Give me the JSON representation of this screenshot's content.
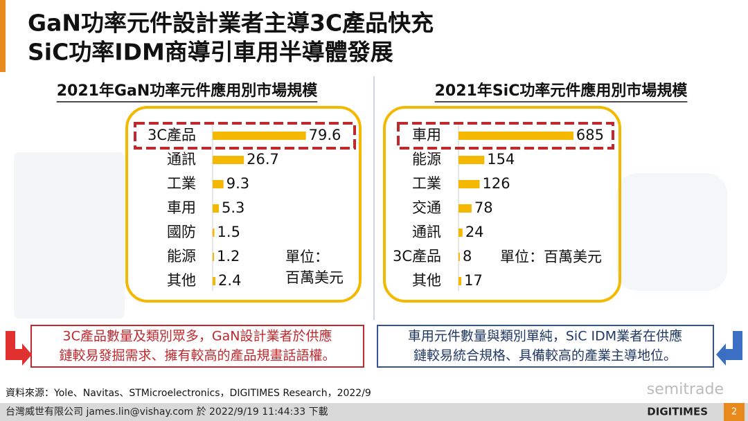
{
  "slide": {
    "title_lines": [
      "GaN功率元件設計業者主導3C產品快充",
      "SiC功率IDM商導引車用半導體發展"
    ],
    "callouts": [
      {
        "lines": [
          "3C產品數量及類別眾多，GaN設計業者於供應",
          "鏈較易發掘需求、擁有較高的產品規畫話語權。"
        ]
      },
      {
        "lines": [
          "車用元件數量與類別單純，SiC IDM業者在供應",
          "鏈較易統合規格、具備較高的產業主導地位。"
        ]
      }
    ],
    "source": "資料來源：Yole、Navitas、STMicroelectronics，DIGITIMES Research，2022/9",
    "footer": "台灣威世有限公司 james.lin@vishay.com 於 2022/9/19 11:44:33 下載",
    "watermark": "semitrade",
    "logo": "DIGITIMES",
    "page_number": "2"
  },
  "chart_data": [
    {
      "type": "hbar",
      "title": "2021年GaN功率元件應用別市場規模",
      "categories": [
        "3C產品",
        "通訊",
        "工業",
        "車用",
        "國防",
        "能源",
        "其他"
      ],
      "values": [
        79.6,
        26.7,
        9.3,
        5.3,
        1.5,
        1.2,
        2.4
      ],
      "color": "#f5b800",
      "xlim": [
        0,
        120
      ],
      "unit": [
        "單位：",
        "百萬美元"
      ]
    },
    {
      "type": "hbar",
      "title": "2021年SiC功率元件應用別市場規模",
      "categories": [
        "車用",
        "能源",
        "工業",
        "交通",
        "通訊",
        "3C產品",
        "其他"
      ],
      "values": [
        685,
        154,
        126,
        78,
        24,
        8,
        17
      ],
      "color": "#f5b800",
      "xlim": [
        0,
        900
      ],
      "unit": [
        "單位：百萬美元"
      ]
    }
  ]
}
